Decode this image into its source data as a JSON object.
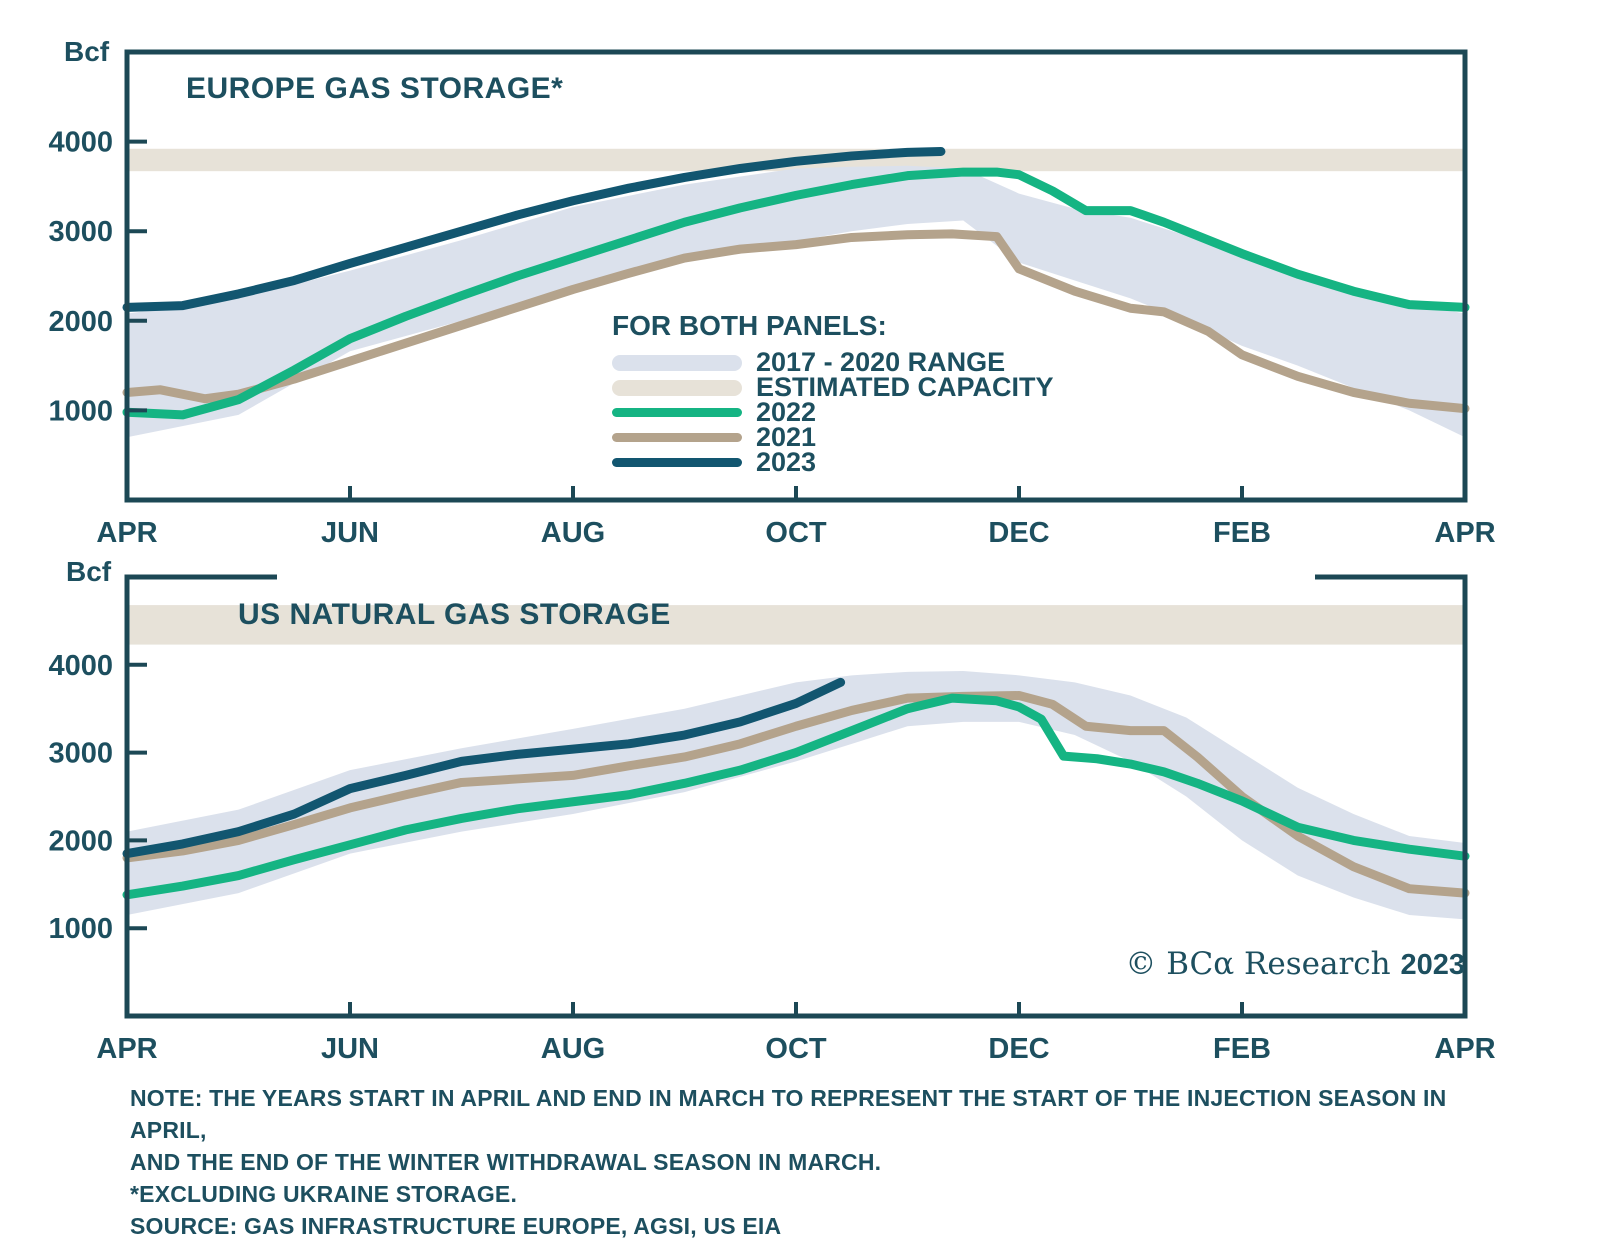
{
  "colors": {
    "text": "#1d4f5f",
    "axis": "#1c4855",
    "series_2022": "#15b483",
    "series_2021": "#b4a38c",
    "series_2023": "#125670",
    "range_band": "#dbe1ec",
    "capacity_band": "#e7e2d8",
    "background": "#ffffff"
  },
  "legend": {
    "header": "FOR BOTH PANELS:",
    "items": [
      {
        "key": "range",
        "label": "2017 - 2020 RANGE",
        "swatch": "band",
        "color_key": "range_band"
      },
      {
        "key": "capacity",
        "label": "ESTIMATED CAPACITY",
        "swatch": "band",
        "color_key": "capacity_band"
      },
      {
        "key": "y2022",
        "label": "2022",
        "swatch": "line",
        "color_key": "series_2022"
      },
      {
        "key": "y2021",
        "label": "2021",
        "swatch": "line",
        "color_key": "series_2021"
      },
      {
        "key": "y2023",
        "label": "2023",
        "swatch": "line",
        "color_key": "series_2023"
      }
    ]
  },
  "watermark": {
    "prefix": "© BCα Research ",
    "year": "2023"
  },
  "notes": {
    "line1": "NOTE: THE YEARS START IN APRIL AND END IN MARCH TO REPRESENT THE START OF THE INJECTION SEASON IN APRIL,",
    "line2": "AND THE END OF THE WINTER WITHDRAWAL SEASON IN MARCH.",
    "line3": "*EXCLUDING UKRAINE STORAGE.",
    "line4": "SOURCE: GAS INFRASTRUCTURE EUROPE, AGSI, US EIA"
  },
  "chart_data": [
    {
      "id": "europe",
      "type": "line",
      "title": "EUROPE GAS STORAGE*",
      "unit_label": "Bcf",
      "x_axis": {
        "xlim": [
          0,
          12
        ],
        "tick_positions": [
          2,
          4,
          6,
          8,
          10
        ],
        "label_positions": [
          0,
          2,
          4,
          6,
          8,
          10,
          12
        ],
        "labels": [
          "APR",
          "JUN",
          "AUG",
          "OCT",
          "DEC",
          "FEB",
          "APR"
        ],
        "note": "x in months after April"
      },
      "y_axis": {
        "ticks": [
          1000,
          2000,
          3000,
          4000
        ],
        "ylim": [
          0,
          5000
        ]
      },
      "estimated_capacity_bcf": [
        3670,
        3920
      ],
      "range_2017_2020": {
        "x": [
          0,
          1,
          2,
          3,
          4,
          5,
          6,
          6.5,
          7,
          7.5,
          8,
          8.5,
          9,
          9.5,
          10,
          10.5,
          11,
          11.5,
          12
        ],
        "upper": [
          2080,
          2250,
          2560,
          2900,
          3270,
          3520,
          3700,
          3720,
          3730,
          3700,
          3420,
          3250,
          3150,
          2950,
          2700,
          2520,
          2350,
          2200,
          2080
        ],
        "lower": [
          700,
          950,
          1660,
          2000,
          2370,
          2650,
          2890,
          3000,
          3080,
          3120,
          2650,
          2450,
          2250,
          2000,
          1720,
          1500,
          1250,
          1000,
          700
        ]
      },
      "series": [
        {
          "name": "2021",
          "color_key": "series_2021",
          "x": [
            0,
            0.3,
            0.7,
            1,
            1.5,
            2,
            2.5,
            3,
            3.5,
            4,
            4.5,
            5,
            5.5,
            6,
            6.5,
            7,
            7.4,
            7.8,
            8,
            8.5,
            9,
            9.3,
            9.7,
            10,
            10.5,
            11,
            11.5,
            12
          ],
          "values": [
            1200,
            1230,
            1130,
            1180,
            1350,
            1550,
            1750,
            1950,
            2150,
            2350,
            2530,
            2700,
            2800,
            2850,
            2930,
            2960,
            2970,
            2940,
            2580,
            2330,
            2140,
            2100,
            1880,
            1620,
            1380,
            1200,
            1080,
            1020
          ]
        },
        {
          "name": "2022",
          "color_key": "series_2022",
          "x": [
            0,
            0.5,
            1,
            1.5,
            2,
            2.5,
            3,
            3.5,
            4,
            4.5,
            5,
            5.5,
            6,
            6.5,
            7,
            7.5,
            7.8,
            8,
            8.3,
            8.6,
            9,
            9.3,
            9.6,
            10,
            10.5,
            11,
            11.5,
            12
          ],
          "values": [
            980,
            950,
            1120,
            1450,
            1800,
            2050,
            2280,
            2500,
            2700,
            2900,
            3100,
            3260,
            3400,
            3520,
            3620,
            3660,
            3660,
            3630,
            3450,
            3230,
            3230,
            3100,
            2950,
            2750,
            2520,
            2330,
            2180,
            2150
          ]
        },
        {
          "name": "2023",
          "color_key": "series_2023",
          "x": [
            0,
            0.5,
            1,
            1.5,
            2,
            2.5,
            3,
            3.5,
            4,
            4.5,
            5,
            5.5,
            6,
            6.5,
            7,
            7.3
          ],
          "values": [
            2150,
            2170,
            2300,
            2450,
            2640,
            2820,
            3000,
            3180,
            3340,
            3480,
            3600,
            3700,
            3780,
            3840,
            3880,
            3890
          ]
        }
      ]
    },
    {
      "id": "us",
      "type": "line",
      "title": "US NATURAL GAS STORAGE",
      "unit_label": "Bcf",
      "x_axis": {
        "xlim": [
          0,
          12
        ],
        "tick_positions": [
          2,
          4,
          6,
          8,
          10
        ],
        "label_positions": [
          0,
          2,
          4,
          6,
          8,
          10,
          12
        ],
        "labels": [
          "APR",
          "JUN",
          "AUG",
          "OCT",
          "DEC",
          "FEB",
          "APR"
        ],
        "note": "x in months after April"
      },
      "y_axis": {
        "ticks": [
          1000,
          2000,
          3000,
          4000
        ],
        "ylim": [
          0,
          5000
        ]
      },
      "estimated_capacity_bcf": [
        4230,
        4680
      ],
      "range_2017_2020": {
        "x": [
          0,
          1,
          2,
          3,
          4,
          5,
          6,
          6.5,
          7,
          7.5,
          8,
          8.5,
          9,
          9.5,
          10,
          10.5,
          11,
          11.5,
          12
        ],
        "upper": [
          2100,
          2350,
          2800,
          3050,
          3270,
          3500,
          3800,
          3880,
          3920,
          3930,
          3880,
          3800,
          3650,
          3400,
          3000,
          2600,
          2300,
          2050,
          1970
        ],
        "lower": [
          1150,
          1400,
          1850,
          2100,
          2300,
          2550,
          2900,
          3100,
          3300,
          3350,
          3350,
          3200,
          2900,
          2500,
          2000,
          1600,
          1350,
          1150,
          1100
        ]
      },
      "series": [
        {
          "name": "2021",
          "color_key": "series_2021",
          "x": [
            0,
            0.5,
            1,
            1.5,
            2,
            2.5,
            3,
            3.5,
            4,
            4.5,
            5,
            5.5,
            6,
            6.5,
            7,
            7.5,
            8,
            8.3,
            8.6,
            9,
            9.3,
            9.6,
            10,
            10.5,
            11,
            11.5,
            12
          ],
          "values": [
            1800,
            1880,
            2000,
            2180,
            2370,
            2520,
            2660,
            2700,
            2740,
            2850,
            2950,
            3100,
            3300,
            3480,
            3620,
            3640,
            3650,
            3550,
            3300,
            3250,
            3250,
            2950,
            2500,
            2050,
            1700,
            1450,
            1400
          ]
        },
        {
          "name": "2022",
          "color_key": "series_2022",
          "x": [
            0,
            0.5,
            1,
            1.5,
            2,
            2.5,
            3,
            3.5,
            4,
            4.5,
            5,
            5.5,
            6,
            6.5,
            7,
            7.4,
            7.8,
            8,
            8.2,
            8.4,
            8.7,
            9,
            9.3,
            9.6,
            10,
            10.5,
            11,
            11.5,
            12
          ],
          "values": [
            1380,
            1480,
            1600,
            1780,
            1950,
            2120,
            2250,
            2360,
            2440,
            2520,
            2650,
            2800,
            3000,
            3250,
            3500,
            3620,
            3590,
            3520,
            3380,
            2960,
            2930,
            2870,
            2780,
            2650,
            2450,
            2150,
            2000,
            1900,
            1820
          ]
        },
        {
          "name": "2023",
          "color_key": "series_2023",
          "x": [
            0,
            0.5,
            1,
            1.5,
            2,
            2.5,
            3,
            3.5,
            4,
            4.5,
            5,
            5.5,
            6,
            6.4
          ],
          "values": [
            1850,
            1960,
            2100,
            2300,
            2590,
            2740,
            2900,
            2980,
            3040,
            3100,
            3200,
            3350,
            3560,
            3800
          ]
        }
      ]
    }
  ]
}
